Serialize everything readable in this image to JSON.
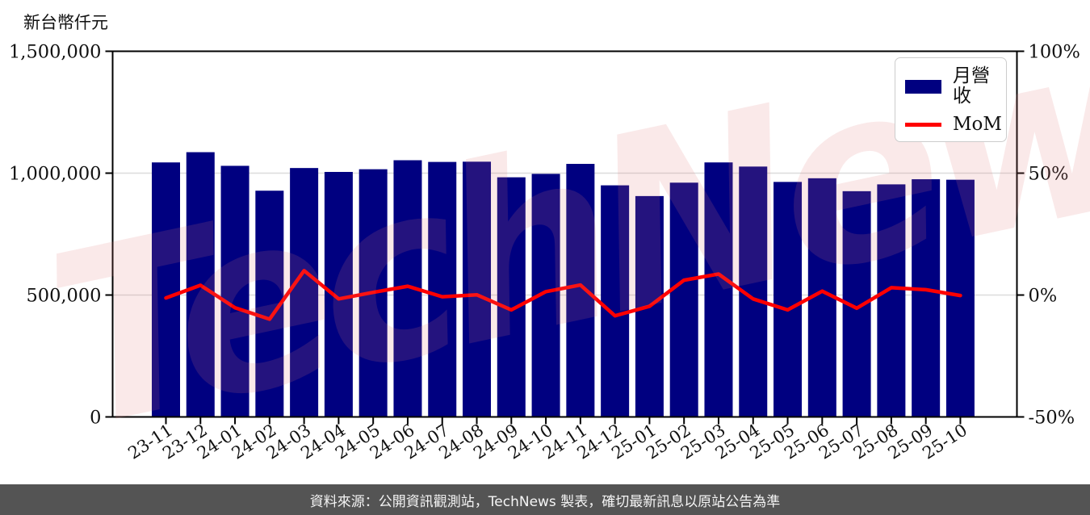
{
  "figure": {
    "y_axis_title": "新台幣仟元",
    "watermark": "TechNews",
    "footer": "資料來源：公開資訊觀測站，TechNews 製表，確切最新訊息以原站公告為準"
  },
  "legend": {
    "revenue_label": "月營收",
    "mom_label": "MoM"
  },
  "colors": {
    "bar": "#000080",
    "line": "#ff0000",
    "grid": "#dcdcdc",
    "spine": "#000000",
    "footer_bg": "#545454",
    "watermark": "#e27474"
  },
  "chart_data": {
    "type": "bar",
    "title": "",
    "categories": [
      "23-11",
      "23-12",
      "24-01",
      "24-02",
      "24-03",
      "24-04",
      "24-05",
      "24-06",
      "24-07",
      "24-08",
      "24-09",
      "24-10",
      "24-11",
      "24-12",
      "25-01",
      "25-02",
      "25-03",
      "25-04",
      "25-05",
      "25-06",
      "25-07",
      "25-08",
      "25-09",
      "25-10"
    ],
    "series": [
      {
        "name": "月營收",
        "type": "bar",
        "axis": "left",
        "unit": "新台幣仟元",
        "values": [
          1044000,
          1086000,
          1030000,
          928000,
          1021000,
          1005000,
          1016000,
          1053000,
          1046000,
          1047000,
          983000,
          997000,
          1038000,
          950000,
          906000,
          961000,
          1044000,
          1027000,
          964000,
          979000,
          926000,
          954000,
          975000,
          973000
        ]
      },
      {
        "name": "MoM",
        "type": "line",
        "axis": "right",
        "unit": "%",
        "values": [
          -1.2,
          4.0,
          -5.2,
          -9.9,
          10.0,
          -1.6,
          1.1,
          3.6,
          -0.7,
          0.1,
          -6.1,
          1.4,
          4.1,
          -8.5,
          -4.6,
          6.1,
          8.6,
          -1.6,
          -6.1,
          1.6,
          -5.4,
          3.0,
          2.2,
          -0.2
        ]
      }
    ],
    "left_axis": {
      "title": "新台幣仟元",
      "range": [
        0,
        1500000
      ],
      "tick_values": [
        0,
        500000,
        1000000,
        1500000
      ],
      "tick_labels": [
        "0",
        "500,000",
        "1,000,000",
        "1,500,000"
      ]
    },
    "right_axis": {
      "title": "",
      "range": [
        -50,
        100
      ],
      "tick_values": [
        -50,
        0,
        50,
        100
      ],
      "tick_labels": [
        "-50%",
        "0%",
        "50%",
        "100%"
      ]
    },
    "grid": "horizontal",
    "legend_position": "top-right"
  }
}
